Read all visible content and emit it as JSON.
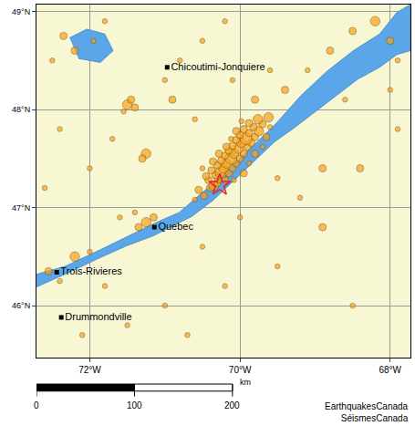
{
  "chart_data": {
    "type": "map",
    "xlim": [
      -72.71,
      -67.73
    ],
    "ylim": [
      45.47,
      49.07
    ],
    "xticks": [
      {
        "value": -72,
        "label": "72°W"
      },
      {
        "value": -70,
        "label": "70°W"
      },
      {
        "value": -68,
        "label": "68°W"
      }
    ],
    "yticks": [
      {
        "value": 46,
        "label": "46°N"
      },
      {
        "value": 47,
        "label": "47°N"
      },
      {
        "value": 48,
        "label": "48°N"
      },
      {
        "value": 49,
        "label": "49°N"
      }
    ],
    "grid": true,
    "land_color": "#f7f7d4",
    "water_color": "#5aa6e8",
    "water": [
      [
        [
          -72.71,
          46.32
        ],
        [
          -72.33,
          46.4
        ],
        [
          -71.86,
          46.57
        ],
        [
          -71.4,
          46.74
        ],
        [
          -71.11,
          46.85
        ],
        [
          -70.81,
          46.95
        ],
        [
          -70.58,
          47.1
        ],
        [
          -70.23,
          47.33
        ],
        [
          -69.88,
          47.59
        ],
        [
          -69.54,
          47.84
        ],
        [
          -69.19,
          48.14
        ],
        [
          -68.84,
          48.39
        ],
        [
          -68.49,
          48.6
        ],
        [
          -68.14,
          48.77
        ],
        [
          -67.91,
          48.99
        ],
        [
          -67.73,
          49.07
        ],
        [
          -67.73,
          48.6
        ],
        [
          -67.91,
          48.56
        ],
        [
          -68.14,
          48.43
        ],
        [
          -68.43,
          48.31
        ],
        [
          -68.72,
          48.14
        ],
        [
          -69.01,
          47.97
        ],
        [
          -69.3,
          47.8
        ],
        [
          -69.54,
          47.67
        ],
        [
          -69.83,
          47.46
        ],
        [
          -70.12,
          47.25
        ],
        [
          -70.35,
          47.08
        ],
        [
          -70.64,
          46.91
        ],
        [
          -70.93,
          46.8
        ],
        [
          -71.16,
          46.71
        ],
        [
          -71.51,
          46.61
        ],
        [
          -71.86,
          46.49
        ],
        [
          -72.33,
          46.32
        ],
        [
          -72.71,
          46.19
        ]
      ],
      [
        [
          -72.27,
          48.73
        ],
        [
          -72.04,
          48.82
        ],
        [
          -71.8,
          48.77
        ],
        [
          -71.69,
          48.6
        ],
        [
          -71.86,
          48.48
        ],
        [
          -72.15,
          48.52
        ]
      ]
    ],
    "earthquakes": {
      "color": "#f7a21b",
      "marker": "circle",
      "points": [
        [
          -70.4,
          47.2,
          2
        ],
        [
          -70.35,
          47.22,
          3
        ],
        [
          -70.3,
          47.25,
          2
        ],
        [
          -70.42,
          47.28,
          2
        ],
        [
          -70.28,
          47.3,
          3
        ],
        [
          -70.2,
          47.28,
          2
        ],
        [
          -70.33,
          47.33,
          2
        ],
        [
          -70.25,
          47.36,
          4
        ],
        [
          -70.15,
          47.35,
          2
        ],
        [
          -70.38,
          47.38,
          2
        ],
        [
          -70.22,
          47.4,
          3
        ],
        [
          -70.1,
          47.4,
          2
        ],
        [
          -70.3,
          47.43,
          2
        ],
        [
          -70.18,
          47.45,
          3
        ],
        [
          -70.05,
          47.45,
          2
        ],
        [
          -70.25,
          47.48,
          2
        ],
        [
          -70.12,
          47.5,
          4
        ],
        [
          -70.0,
          47.5,
          2
        ],
        [
          -70.2,
          47.53,
          2
        ],
        [
          -70.08,
          47.55,
          3
        ],
        [
          -69.95,
          47.55,
          2
        ],
        [
          -70.15,
          47.58,
          2
        ],
        [
          -70.02,
          47.6,
          3
        ],
        [
          -69.9,
          47.62,
          2
        ],
        [
          -70.1,
          47.63,
          2
        ],
        [
          -69.98,
          47.66,
          3
        ],
        [
          -69.85,
          47.66,
          2
        ],
        [
          -70.05,
          47.69,
          2
        ],
        [
          -69.92,
          47.7,
          4
        ],
        [
          -69.8,
          47.72,
          2
        ],
        [
          -70.0,
          47.74,
          2
        ],
        [
          -69.88,
          47.76,
          2
        ],
        [
          -69.75,
          47.78,
          3
        ],
        [
          -69.95,
          47.8,
          2
        ],
        [
          -69.82,
          47.82,
          2
        ],
        [
          -69.7,
          47.85,
          2
        ],
        [
          -69.88,
          47.86,
          2
        ],
        [
          -69.76,
          47.9,
          3
        ],
        [
          -70.45,
          47.32,
          2
        ],
        [
          -70.5,
          47.4,
          1
        ],
        [
          -70.36,
          47.47,
          2
        ],
        [
          -70.28,
          47.55,
          2
        ],
        [
          -70.18,
          47.62,
          2
        ],
        [
          -70.12,
          47.7,
          1
        ],
        [
          -70.05,
          47.78,
          2
        ],
        [
          -69.98,
          47.88,
          1
        ],
        [
          -70.08,
          47.28,
          1
        ],
        [
          -69.95,
          47.35,
          2
        ],
        [
          -69.88,
          47.45,
          1
        ],
        [
          -69.8,
          47.55,
          2
        ],
        [
          -69.7,
          47.62,
          1
        ],
        [
          -69.65,
          47.72,
          2
        ],
        [
          -69.6,
          47.82,
          1
        ],
        [
          -70.55,
          47.18,
          2
        ],
        [
          -70.48,
          47.12,
          2
        ],
        [
          -70.6,
          47.08,
          1
        ],
        [
          -69.62,
          47.92,
          3
        ],
        [
          -72.2,
          48.6,
          2
        ],
        [
          -72.35,
          48.75,
          2
        ],
        [
          -71.95,
          48.7,
          1
        ],
        [
          -72.5,
          48.5,
          1
        ],
        [
          -71.5,
          48.05,
          3
        ],
        [
          -71.45,
          48.1,
          2
        ],
        [
          -71.4,
          48.02,
          2
        ],
        [
          -71.55,
          47.98,
          1
        ],
        [
          -71.0,
          48.3,
          1
        ],
        [
          -70.8,
          48.5,
          1
        ],
        [
          -70.5,
          48.7,
          1
        ],
        [
          -70.2,
          48.9,
          1
        ],
        [
          -71.8,
          48.9,
          1
        ],
        [
          -70.9,
          48.1,
          2
        ],
        [
          -70.6,
          47.9,
          1
        ],
        [
          -71.25,
          47.55,
          3
        ],
        [
          -71.3,
          47.5,
          2
        ],
        [
          -71.7,
          47.7,
          1
        ],
        [
          -72.0,
          47.4,
          1
        ],
        [
          -72.4,
          47.8,
          1
        ],
        [
          -72.6,
          47.2,
          1
        ],
        [
          -71.25,
          46.85,
          3
        ],
        [
          -71.35,
          46.8,
          2
        ],
        [
          -71.15,
          46.9,
          2
        ],
        [
          -71.4,
          46.95,
          1
        ],
        [
          -71.6,
          46.9,
          1
        ],
        [
          -72.55,
          46.35,
          2
        ],
        [
          -72.4,
          46.25,
          1
        ],
        [
          -72.2,
          46.5,
          3
        ],
        [
          -72.0,
          46.55,
          1
        ],
        [
          -72.1,
          45.7,
          1
        ],
        [
          -71.5,
          45.8,
          1
        ],
        [
          -71.0,
          46.0,
          1
        ],
        [
          -70.7,
          45.7,
          1
        ],
        [
          -70.2,
          46.2,
          1
        ],
        [
          -70.5,
          46.6,
          1
        ],
        [
          -71.8,
          46.2,
          1
        ],
        [
          -69.5,
          47.3,
          1
        ],
        [
          -69.2,
          47.1,
          1
        ],
        [
          -68.9,
          47.4,
          2
        ],
        [
          -68.4,
          47.4,
          2
        ],
        [
          -68.9,
          46.8,
          2
        ],
        [
          -68.5,
          46.0,
          1
        ],
        [
          -69.5,
          46.4,
          1
        ],
        [
          -70.0,
          46.9,
          1
        ],
        [
          -68.8,
          48.6,
          2
        ],
        [
          -68.2,
          48.9,
          3
        ],
        [
          -68.0,
          48.7,
          2
        ],
        [
          -67.9,
          48.5,
          1
        ],
        [
          -68.5,
          48.8,
          2
        ],
        [
          -69.4,
          48.2,
          2
        ],
        [
          -69.1,
          48.4,
          1
        ],
        [
          -69.6,
          48.4,
          1
        ],
        [
          -69.8,
          48.1,
          2
        ],
        [
          -70.1,
          48.3,
          1
        ],
        [
          -68.0,
          48.2,
          1
        ],
        [
          -67.9,
          47.8,
          1
        ],
        [
          -68.6,
          48.1,
          1
        ]
      ]
    },
    "epicentre": {
      "lon": -70.27,
      "lat": 47.23,
      "color": "#e8202a",
      "marker": "star"
    },
    "cities": [
      {
        "label": "Chicoutimi-Jonquiere",
        "lon": -70.97,
        "lat": 48.43
      },
      {
        "label": "Quebec",
        "lon": -71.14,
        "lat": 46.8
      },
      {
        "label": "Trois-Rivieres",
        "lon": -72.44,
        "lat": 46.34
      },
      {
        "label": "Drummondville",
        "lon": -72.38,
        "lat": 45.88
      }
    ],
    "scale_bar": {
      "ticks": [
        0,
        100,
        200
      ],
      "unit": "km",
      "lat": 46.5
    },
    "credits": [
      "EarthquakesCanada",
      "SéismesCanada"
    ]
  }
}
